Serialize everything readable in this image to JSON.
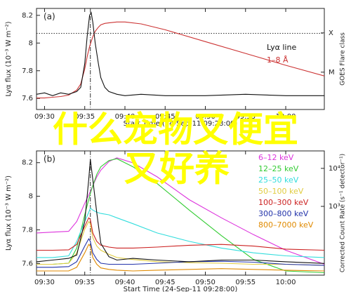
{
  "chart_data": [
    {
      "type": "line",
      "panel_label": "(a)",
      "ylabel": "Lyα flux (10⁻³ W m⁻²)",
      "y2label": "GOES Flare class",
      "xlabel": "Start Time (24-Sep-11 09:28:00)",
      "x": [
        29,
        30,
        31,
        32,
        33,
        34,
        34.5,
        35,
        35.3,
        35.6,
        35.8,
        36,
        36.3,
        36.7,
        37,
        37.5,
        38,
        39,
        40,
        42,
        45,
        50,
        55,
        60,
        64.8
      ],
      "xlim": [
        29,
        64.8
      ],
      "xticks": [
        {
          "value": 30,
          "label": "09:30"
        },
        {
          "value": 35,
          "label": "09:35"
        },
        {
          "value": 40,
          "label": "09:40"
        },
        {
          "value": 45,
          "label": "09:45"
        },
        {
          "value": 50,
          "label": "09:50"
        },
        {
          "value": 55,
          "label": "09:55"
        },
        {
          "value": 60,
          "label": "10:00"
        }
      ],
      "ylim": [
        7.52,
        8.25
      ],
      "yticks": [
        7.6,
        7.8,
        8.0,
        8.2
      ],
      "y2lim": [
        1.12e-06,
        0.00042
      ],
      "y2log": true,
      "y2ticks": [
        {
          "value": 0.0001,
          "label": "X"
        },
        {
          "value": 1e-05,
          "label": "M"
        }
      ],
      "hline": 8.07,
      "vline": 35.7,
      "legend": "upper right",
      "series": [
        {
          "name": "Lyα line",
          "color": "#111111",
          "values": [
            7.63,
            7.64,
            7.62,
            7.64,
            7.63,
            7.65,
            7.68,
            7.85,
            8.05,
            8.2,
            8.22,
            8.15,
            8.0,
            7.85,
            7.75,
            7.68,
            7.65,
            7.63,
            7.62,
            7.63,
            7.62,
            7.62,
            7.63,
            7.62,
            7.62
          ]
        },
        {
          "name": "1–8 Å",
          "color": "#cc3333",
          "axis": "y2",
          "values": [
            2.2e-06,
            2.2e-06,
            2.3e-06,
            2.4e-06,
            2.6e-06,
            3.5e-06,
            5e-06,
            1.2e-05,
            2.5e-05,
            4.5e-05,
            6e-05,
            8e-05,
            0.00011,
            0.00014,
            0.00016,
            0.000175,
            0.00018,
            0.00019,
            0.00019,
            0.00017,
            0.00012,
            6e-05,
            3e-05,
            1.5e-05,
            8e-06
          ]
        }
      ]
    },
    {
      "type": "line",
      "panel_label": "(b)",
      "ylabel": "Lyα flux (10⁻³ W m⁻²)",
      "y2label": "Corrected Count Rate (s⁻¹ detector⁻¹)",
      "xlabel": "Start Time (24-Sep-11 09:28:00)",
      "x": [
        29,
        31,
        33,
        34,
        35,
        35.5,
        35.7,
        36,
        36.5,
        37,
        38,
        39,
        41,
        44,
        48,
        52,
        56,
        60,
        64.8
      ],
      "xlim": [
        29,
        64.8
      ],
      "xticks": [
        {
          "value": 30,
          "label": "09:30"
        },
        {
          "value": 35,
          "label": "09:35"
        },
        {
          "value": 40,
          "label": "09:40"
        },
        {
          "value": 45,
          "label": "09:45"
        },
        {
          "value": 50,
          "label": "09:50"
        },
        {
          "value": 55,
          "label": "09:55"
        },
        {
          "value": 60,
          "label": "10:00"
        }
      ],
      "ylim": [
        7.53,
        8.27
      ],
      "yticks": [
        7.6,
        7.8,
        8.0,
        8.2
      ],
      "y2lim": [
        15.5,
        28800
      ],
      "y2log": true,
      "y2ticks": [
        {
          "value": 1000,
          "label": "10³"
        },
        {
          "value": 10000,
          "label": "10⁴"
        }
      ],
      "vline": 35.7,
      "legend": "upper right",
      "series": [
        {
          "name": "Lyα",
          "color": "#111111",
          "values": [
            7.61,
            7.62,
            7.63,
            7.65,
            7.85,
            8.1,
            8.22,
            8.1,
            7.9,
            7.72,
            7.64,
            7.62,
            7.63,
            7.62,
            7.61,
            7.62,
            7.62,
            7.61,
            7.6
          ]
        },
        {
          "name": "6–12 keV",
          "color": "#dd33dd",
          "axis": "y2",
          "values": [
            200,
            210,
            220,
            400,
            1200,
            2000,
            2500,
            3500,
            6000,
            9000,
            15000,
            19000,
            14000,
            6000,
            1500,
            500,
            180,
            70,
            30
          ]
        },
        {
          "name": "12–25 keV",
          "color": "#33cc33",
          "axis": "y2",
          "values": [
            30,
            30,
            32,
            80,
            600,
            1500,
            2200,
            3500,
            7000,
            11000,
            16000,
            18000,
            11000,
            4000,
            800,
            170,
            40,
            20,
            18
          ]
        },
        {
          "name": "25–50 keV",
          "color": "#33dddd",
          "axis": "y2",
          "values": [
            45,
            45,
            50,
            120,
            400,
            700,
            900,
            800,
            700,
            650,
            600,
            500,
            350,
            200,
            120,
            80,
            60,
            50,
            45
          ]
        },
        {
          "name": "50–100 keV",
          "color": "#e0cc40",
          "axis": "y2",
          "values": [
            30,
            30,
            32,
            60,
            250,
            400,
            350,
            150,
            90,
            70,
            55,
            45,
            40,
            35,
            33,
            32,
            30,
            30,
            28
          ]
        },
        {
          "name": "100–300 keV",
          "color": "#cc2222",
          "axis": "y2",
          "values": [
            70,
            70,
            72,
            100,
            300,
            500,
            450,
            200,
            120,
            95,
            85,
            80,
            80,
            85,
            95,
            100,
            90,
            75,
            70
          ]
        },
        {
          "name": "300–800 keV",
          "color": "#2233aa",
          "axis": "y2",
          "values": [
            25,
            25,
            26,
            35,
            90,
            140,
            120,
            60,
            40,
            32,
            30,
            30,
            30,
            32,
            35,
            36,
            34,
            30,
            28
          ]
        },
        {
          "name": "800–7000 keV",
          "color": "#e08a00",
          "axis": "y2",
          "values": [
            20,
            20,
            20,
            25,
            60,
            100,
            90,
            45,
            30,
            24,
            22,
            21,
            20,
            21,
            22,
            23,
            22,
            21,
            20
          ]
        }
      ]
    }
  ],
  "overlay": [
    "什么宠物又便宜",
    "又好养"
  ]
}
